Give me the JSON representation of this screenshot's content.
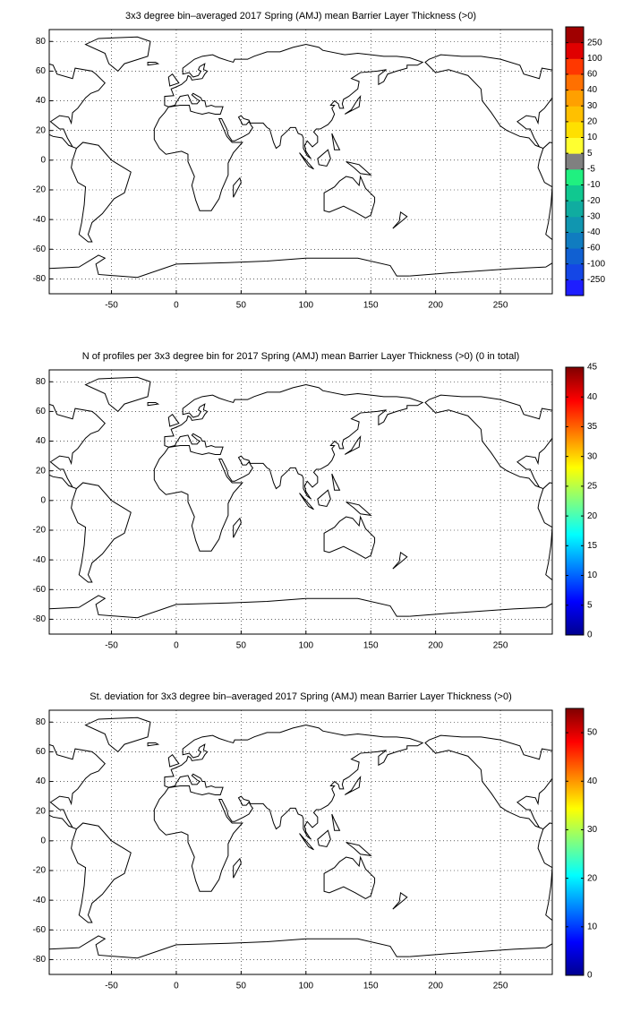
{
  "chart_data": [
    {
      "type": "map",
      "title": "3x3 degree bin–averaged 2017 Spring (AMJ) mean Barrier Layer Thickness (>0)",
      "xlim": [
        -98,
        290
      ],
      "ylim": [
        -90,
        88
      ],
      "xticks": [
        -50,
        0,
        50,
        100,
        150,
        200,
        250
      ],
      "yticks": [
        -80,
        -60,
        -40,
        -20,
        0,
        20,
        40,
        60,
        80
      ],
      "grid": true,
      "colorbar": {
        "type": "discrete",
        "ticks": [
          -250,
          -100,
          -60,
          -40,
          -30,
          -20,
          -10,
          -5,
          5,
          10,
          20,
          30,
          40,
          60,
          100,
          250
        ],
        "colors": [
          "#1e1eff",
          "#1446e6",
          "#1060d2",
          "#107cc0",
          "#1096b0",
          "#10aca0",
          "#10c890",
          "#20f080",
          "#808080",
          "#ffff30",
          "#ffe000",
          "#ffc000",
          "#ffa000",
          "#ff7000",
          "#ff3800",
          "#e00000",
          "#a00000"
        ]
      }
    },
    {
      "type": "map",
      "title": "N of profiles per 3x3 degree bin for 2017 Spring (AMJ) mean Barrier Layer Thickness (>0) (0 in total)",
      "xlim": [
        -98,
        290
      ],
      "ylim": [
        -90,
        88
      ],
      "xticks": [
        -50,
        0,
        50,
        100,
        150,
        200,
        250
      ],
      "yticks": [
        -80,
        -60,
        -40,
        -20,
        0,
        20,
        40,
        60,
        80
      ],
      "grid": true,
      "colorbar": {
        "type": "continuous",
        "colormap": "jet",
        "lim": [
          0,
          45
        ],
        "ticks": [
          0,
          5,
          10,
          15,
          20,
          25,
          30,
          35,
          40,
          45
        ]
      }
    },
    {
      "type": "map",
      "title": "St. deviation for 3x3 degree bin–averaged 2017 Spring (AMJ) mean Barrier Layer Thickness (>0)",
      "xlim": [
        -98,
        290
      ],
      "ylim": [
        -90,
        88
      ],
      "xticks": [
        -50,
        0,
        50,
        100,
        150,
        200,
        250
      ],
      "yticks": [
        -80,
        -60,
        -40,
        -20,
        0,
        20,
        40,
        60,
        80
      ],
      "grid": true,
      "colorbar": {
        "type": "continuous",
        "colormap": "jet",
        "lim": [
          0,
          55
        ],
        "ticks": [
          0,
          10,
          20,
          30,
          40,
          50
        ]
      }
    }
  ]
}
